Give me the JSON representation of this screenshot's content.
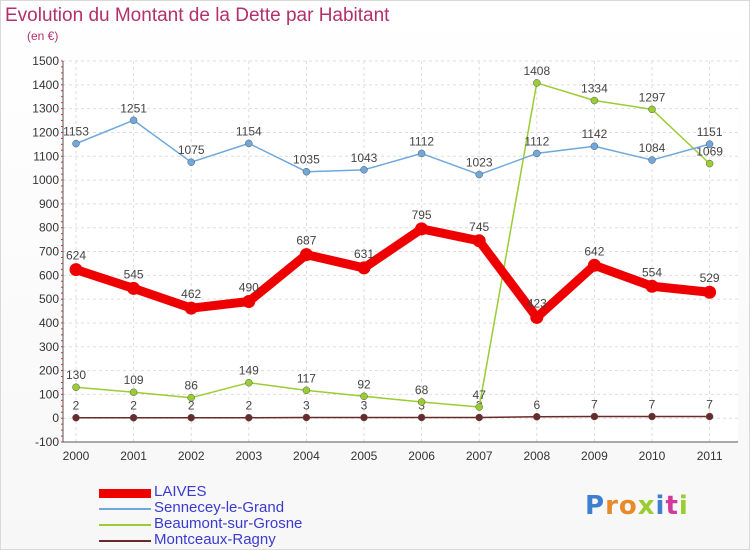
{
  "header": {
    "title": "Evolution du Montant de la Dette par Habitant",
    "unit": "(en €)"
  },
  "logo": {
    "text": "Proxiti",
    "letters": [
      "P",
      "r",
      "o",
      "x",
      "i",
      "t",
      "i"
    ],
    "letter_colors": [
      "#3f7fd0",
      "#e8892a",
      "#e8892a",
      "#9acd32",
      "#3f7fd0",
      "#d23a9a",
      "#9acd32"
    ]
  },
  "chart_data": {
    "type": "line",
    "title": "Evolution du Montant de la Dette par Habitant",
    "ylabel": "(en €)",
    "xlabel": "",
    "x": [
      "2000",
      "2001",
      "2002",
      "2003",
      "2004",
      "2005",
      "2006",
      "2007",
      "2008",
      "2009",
      "2010",
      "2011"
    ],
    "ylim": [
      -100,
      1500
    ],
    "yticks": [
      -100,
      0,
      100,
      200,
      300,
      400,
      500,
      600,
      700,
      800,
      900,
      1000,
      1100,
      1200,
      1300,
      1400,
      1500
    ],
    "grid": true,
    "legend_position": "bottom-left",
    "series": [
      {
        "name": "LAIVES",
        "color": "#ee0000",
        "values": [
          624,
          545,
          462,
          490,
          687,
          631,
          795,
          745,
          423,
          642,
          554,
          529
        ]
      },
      {
        "name": "Sennecey-le-Grand",
        "color": "#6fa8dc",
        "values": [
          1153,
          1251,
          1075,
          1154,
          1035,
          1043,
          1112,
          1023,
          1112,
          1142,
          1084,
          1151
        ]
      },
      {
        "name": "Beaumont-sur-Grosne",
        "color": "#9acd32",
        "values": [
          130,
          109,
          86,
          149,
          117,
          92,
          68,
          47,
          1408,
          1334,
          1297,
          1069
        ]
      },
      {
        "name": "Montceaux-Ragny",
        "color": "#6b2a2a",
        "values": [
          2,
          2,
          2,
          2,
          3,
          3,
          3,
          3,
          6,
          7,
          7,
          7
        ]
      }
    ]
  }
}
